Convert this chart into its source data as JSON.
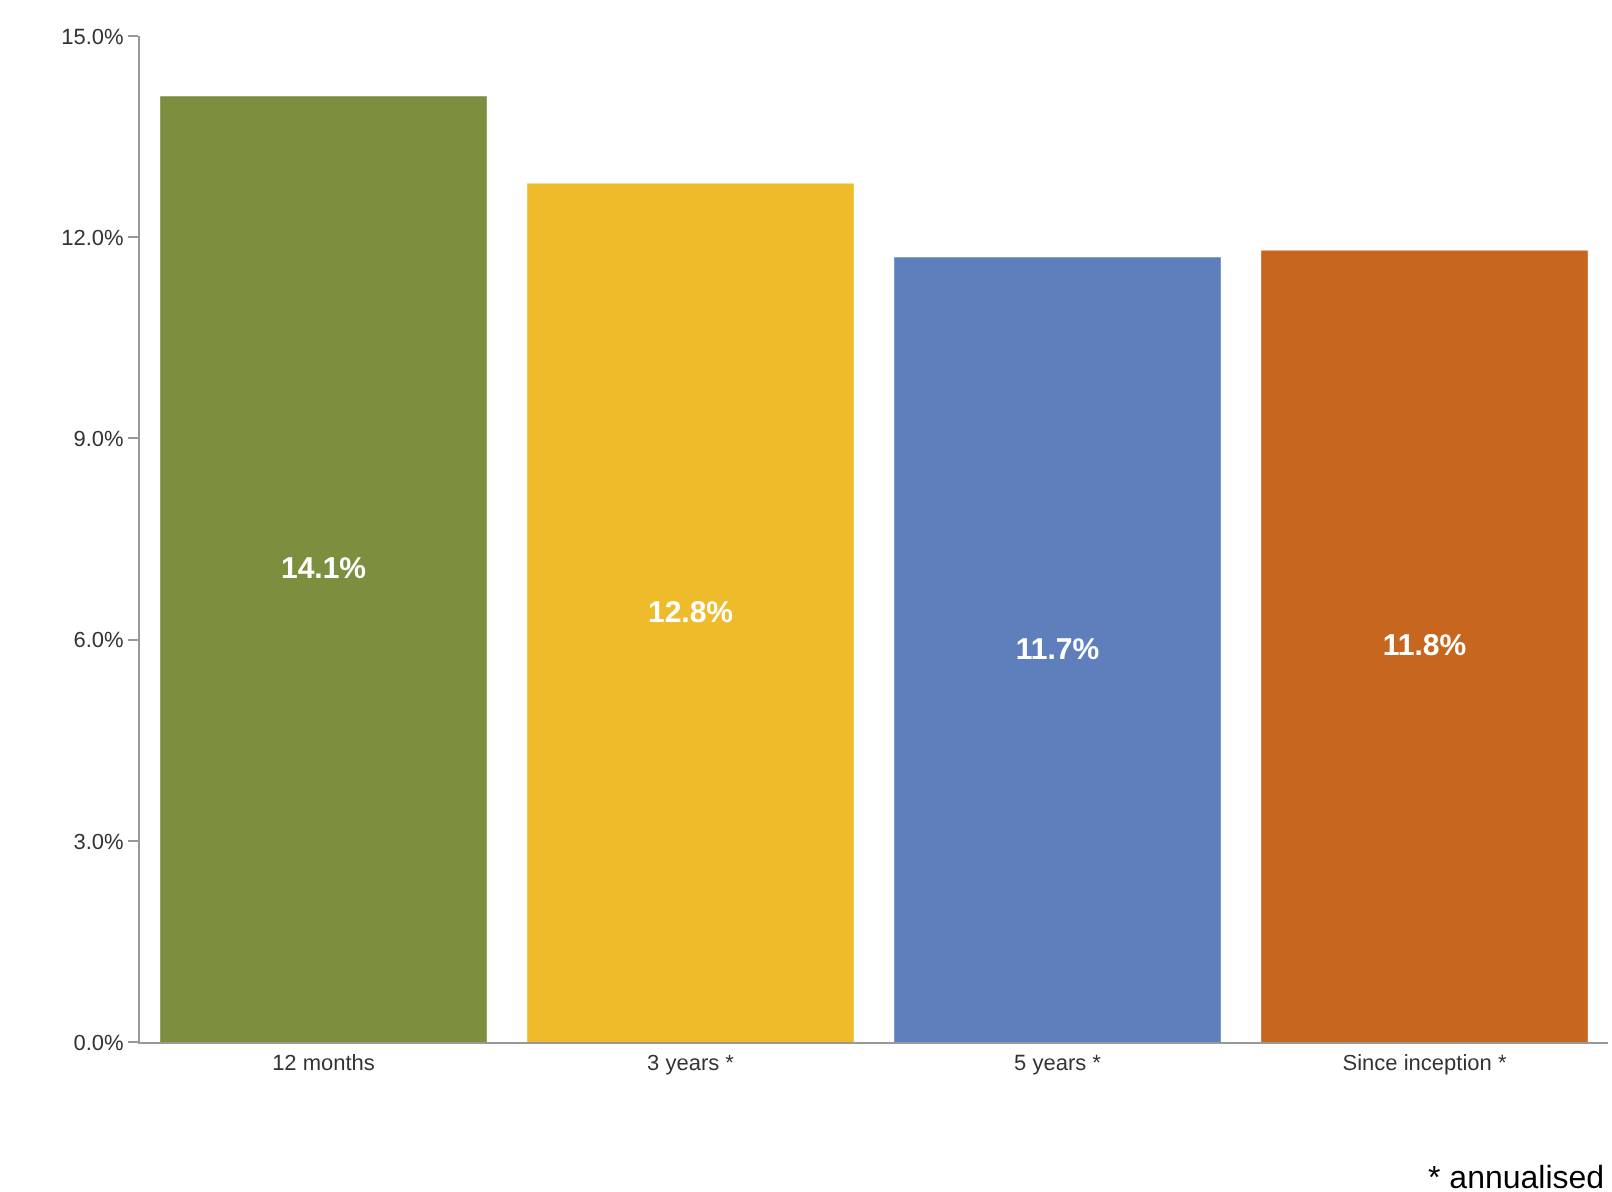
{
  "chart_data": {
    "type": "bar",
    "categories": [
      "12 months",
      "3 years *",
      "5 years *",
      "Since inception *"
    ],
    "values": [
      14.1,
      12.8,
      11.7,
      11.8
    ],
    "colors": [
      "#7b8f3f",
      "#eebc2b",
      "#5f7fbc",
      "#c7661f"
    ],
    "value_labels": [
      "14.1%",
      "12.8%",
      "11.7%",
      "11.8%"
    ],
    "ylim": [
      0,
      15
    ],
    "yticks": [
      {
        "value": 0,
        "label": "0.0%"
      },
      {
        "value": 3,
        "label": "3.0%"
      },
      {
        "value": 6,
        "label": "6.0%"
      },
      {
        "value": 9,
        "label": "9.0%"
      },
      {
        "value": 12,
        "label": "12.0%"
      },
      {
        "value": 15,
        "label": "15.0%"
      }
    ],
    "grid": false,
    "annotations": [
      "* annualised"
    ]
  }
}
